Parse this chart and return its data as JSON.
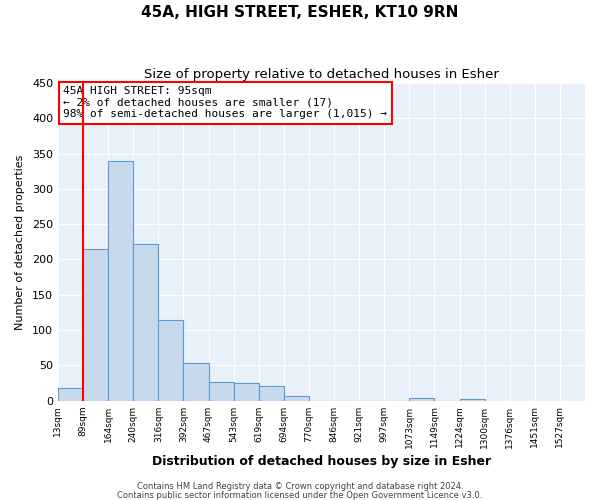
{
  "title": "45A, HIGH STREET, ESHER, KT10 9RN",
  "subtitle": "Size of property relative to detached houses in Esher",
  "xlabel": "Distribution of detached houses by size in Esher",
  "ylabel": "Number of detached properties",
  "bar_values": [
    18,
    215,
    340,
    222,
    114,
    53,
    26,
    25,
    20,
    7,
    0,
    0,
    0,
    0,
    3,
    0,
    2
  ],
  "bin_labels": [
    "13sqm",
    "89sqm",
    "164sqm",
    "240sqm",
    "316sqm",
    "392sqm",
    "467sqm",
    "543sqm",
    "619sqm",
    "694sqm",
    "770sqm",
    "846sqm",
    "921sqm",
    "997sqm",
    "1073sqm",
    "1149sqm",
    "1224sqm",
    "1300sqm",
    "1376sqm",
    "1451sqm",
    "1527sqm"
  ],
  "bar_color": "#c9d9ec",
  "bar_edge_color": "#5b9bd5",
  "red_line_x": 1,
  "annotation_line1": "45A HIGH STREET: 95sqm",
  "annotation_line2": "← 2% of detached houses are smaller (17)",
  "annotation_line3": "98% of semi-detached houses are larger (1,015) →",
  "ylim": [
    0,
    450
  ],
  "yticks": [
    0,
    50,
    100,
    150,
    200,
    250,
    300,
    350,
    400,
    450
  ],
  "footer1": "Contains HM Land Registry data © Crown copyright and database right 2024.",
  "footer2": "Contains public sector information licensed under the Open Government Licence v3.0.",
  "background_color": "#e8f0fa",
  "fig_background": "#ffffff",
  "grid_color": "#ffffff",
  "title_fontsize": 11,
  "subtitle_fontsize": 9.5
}
